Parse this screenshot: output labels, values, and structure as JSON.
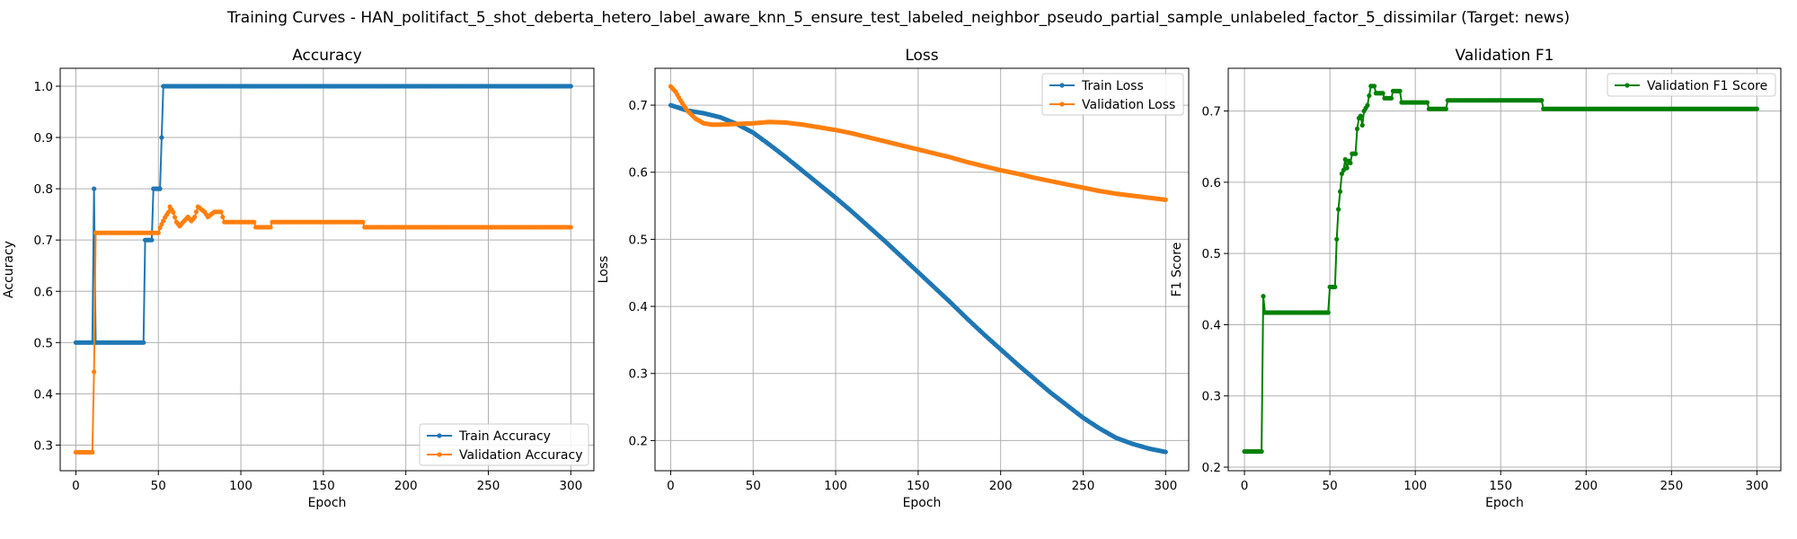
{
  "figure": {
    "suptitle": "Training Curves - HAN_politifact_5_shot_deberta_hetero_label_aware_knn_5_ensure_test_labeled_neighbor_pseudo_partial_sample_unlabeled_factor_5_dissimilar (Target: news)"
  },
  "colors": {
    "blue": "#1f77b4",
    "orange": "#ff7f0e",
    "green": "#008000",
    "grid": "#b0b0b0"
  },
  "chart_data": [
    {
      "type": "line",
      "title": "Accuracy",
      "xlabel": "Epoch",
      "ylabel": "Accuracy",
      "xlim": [
        -9.5,
        314
      ],
      "ylim": [
        0.25,
        1.035
      ],
      "xticks": [
        0,
        50,
        100,
        150,
        200,
        250,
        300
      ],
      "yticks": [
        0.3,
        0.4,
        0.5,
        0.6,
        0.7,
        0.8,
        0.9,
        1.0
      ],
      "ytick_labels": [
        "0.3",
        "0.4",
        "0.5",
        "0.6",
        "0.7",
        "0.8",
        "0.9",
        "1.0"
      ],
      "grid": true,
      "legend_position": "lower-right",
      "series": [
        {
          "name": "Train Accuracy",
          "color": "#1f77b4",
          "points": [
            [
              0,
              0.5
            ],
            [
              10,
              0.5
            ],
            [
              11,
              0.8
            ],
            [
              12,
              0.5
            ],
            [
              41,
              0.5
            ],
            [
              42,
              0.7
            ],
            [
              46,
              0.7
            ],
            [
              47,
              0.8
            ],
            [
              51,
              0.8
            ],
            [
              52,
              0.9
            ],
            [
              53,
              1.0
            ],
            [
              300,
              1.0
            ]
          ]
        },
        {
          "name": "Validation Accuracy",
          "color": "#ff7f0e",
          "points": [
            [
              0,
              0.286
            ],
            [
              10,
              0.286
            ],
            [
              11,
              0.443
            ],
            [
              12,
              0.714
            ],
            [
              50,
              0.714
            ],
            [
              51,
              0.724
            ],
            [
              54,
              0.744
            ],
            [
              56,
              0.754
            ],
            [
              57,
              0.765
            ],
            [
              59,
              0.754
            ],
            [
              61,
              0.735
            ],
            [
              63,
              0.727
            ],
            [
              65,
              0.735
            ],
            [
              68,
              0.745
            ],
            [
              70,
              0.737
            ],
            [
              72,
              0.745
            ],
            [
              74,
              0.765
            ],
            [
              78,
              0.755
            ],
            [
              80,
              0.745
            ],
            [
              84,
              0.755
            ],
            [
              88,
              0.755
            ],
            [
              90,
              0.735
            ],
            [
              108,
              0.735
            ],
            [
              109,
              0.725
            ],
            [
              118,
              0.725
            ],
            [
              119,
              0.735
            ],
            [
              174,
              0.735
            ],
            [
              175,
              0.725
            ],
            [
              300,
              0.725
            ]
          ]
        }
      ]
    },
    {
      "type": "line",
      "title": "Loss",
      "xlabel": "Epoch",
      "ylabel": "Loss",
      "xlim": [
        -9.5,
        314
      ],
      "ylim": [
        0.155,
        0.755
      ],
      "xticks": [
        0,
        50,
        100,
        150,
        200,
        250,
        300
      ],
      "yticks": [
        0.2,
        0.3,
        0.4,
        0.5,
        0.6,
        0.7
      ],
      "ytick_labels": [
        "0.2",
        "0.3",
        "0.4",
        "0.5",
        "0.6",
        "0.7"
      ],
      "grid": true,
      "legend_position": "upper-right",
      "series": [
        {
          "name": "Train Loss",
          "color": "#1f77b4",
          "points": [
            [
              0,
              0.7
            ],
            [
              10,
              0.692
            ],
            [
              20,
              0.688
            ],
            [
              30,
              0.682
            ],
            [
              40,
              0.672
            ],
            [
              50,
              0.659
            ],
            [
              60,
              0.641
            ],
            [
              70,
              0.622
            ],
            [
              80,
              0.602
            ],
            [
              90,
              0.582
            ],
            [
              100,
              0.562
            ],
            [
              110,
              0.541
            ],
            [
              120,
              0.519
            ],
            [
              130,
              0.497
            ],
            [
              140,
              0.474
            ],
            [
              150,
              0.451
            ],
            [
              160,
              0.428
            ],
            [
              170,
              0.405
            ],
            [
              180,
              0.381
            ],
            [
              190,
              0.358
            ],
            [
              200,
              0.336
            ],
            [
              210,
              0.314
            ],
            [
              220,
              0.293
            ],
            [
              230,
              0.272
            ],
            [
              240,
              0.253
            ],
            [
              250,
              0.234
            ],
            [
              260,
              0.218
            ],
            [
              270,
              0.204
            ],
            [
              280,
              0.195
            ],
            [
              290,
              0.188
            ],
            [
              300,
              0.183
            ]
          ]
        },
        {
          "name": "Validation Loss",
          "color": "#ff7f0e",
          "points": [
            [
              0,
              0.728
            ],
            [
              3,
              0.72
            ],
            [
              6,
              0.707
            ],
            [
              10,
              0.692
            ],
            [
              15,
              0.68
            ],
            [
              20,
              0.673
            ],
            [
              25,
              0.671
            ],
            [
              30,
              0.671
            ],
            [
              40,
              0.672
            ],
            [
              50,
              0.673
            ],
            [
              60,
              0.675
            ],
            [
              70,
              0.674
            ],
            [
              80,
              0.671
            ],
            [
              90,
              0.667
            ],
            [
              100,
              0.663
            ],
            [
              110,
              0.658
            ],
            [
              120,
              0.652
            ],
            [
              130,
              0.646
            ],
            [
              140,
              0.64
            ],
            [
              150,
              0.634
            ],
            [
              160,
              0.628
            ],
            [
              170,
              0.622
            ],
            [
              180,
              0.615
            ],
            [
              190,
              0.609
            ],
            [
              200,
              0.603
            ],
            [
              210,
              0.598
            ],
            [
              220,
              0.592
            ],
            [
              230,
              0.587
            ],
            [
              240,
              0.582
            ],
            [
              250,
              0.577
            ],
            [
              260,
              0.572
            ],
            [
              270,
              0.568
            ],
            [
              280,
              0.565
            ],
            [
              290,
              0.562
            ],
            [
              300,
              0.559
            ]
          ]
        }
      ]
    },
    {
      "type": "line",
      "title": "Validation F1",
      "xlabel": "Epoch",
      "ylabel": "F1 Score",
      "xlim": [
        -9.5,
        314
      ],
      "ylim": [
        0.195,
        0.76
      ],
      "xticks": [
        0,
        50,
        100,
        150,
        200,
        250,
        300
      ],
      "yticks": [
        0.2,
        0.3,
        0.4,
        0.5,
        0.6,
        0.7
      ],
      "ytick_labels": [
        "0.2",
        "0.3",
        "0.4",
        "0.5",
        "0.6",
        "0.7"
      ],
      "grid": true,
      "legend_position": "upper-right",
      "series": [
        {
          "name": "Validation F1 Score",
          "color": "#008000",
          "points": [
            [
              0,
              0.222
            ],
            [
              10,
              0.222
            ],
            [
              11,
              0.44
            ],
            [
              12,
              0.417
            ],
            [
              49,
              0.417
            ],
            [
              50,
              0.453
            ],
            [
              53,
              0.453
            ],
            [
              54,
              0.52
            ],
            [
              55,
              0.562
            ],
            [
              56,
              0.587
            ],
            [
              57,
              0.612
            ],
            [
              58,
              0.617
            ],
            [
              59,
              0.632
            ],
            [
              60,
              0.62
            ],
            [
              61,
              0.63
            ],
            [
              62,
              0.627
            ],
            [
              63,
              0.64
            ],
            [
              65,
              0.64
            ],
            [
              66,
              0.675
            ],
            [
              67,
              0.69
            ],
            [
              68,
              0.693
            ],
            [
              69,
              0.68
            ],
            [
              70,
              0.7
            ],
            [
              72,
              0.708
            ],
            [
              74,
              0.735
            ],
            [
              76,
              0.735
            ],
            [
              77,
              0.725
            ],
            [
              81,
              0.725
            ],
            [
              82,
              0.718
            ],
            [
              86,
              0.718
            ],
            [
              87,
              0.728
            ],
            [
              91,
              0.728
            ],
            [
              92,
              0.712
            ],
            [
              107,
              0.712
            ],
            [
              108,
              0.703
            ],
            [
              118,
              0.703
            ],
            [
              119,
              0.715
            ],
            [
              174,
              0.715
            ],
            [
              175,
              0.703
            ],
            [
              300,
              0.703
            ]
          ]
        }
      ]
    }
  ]
}
